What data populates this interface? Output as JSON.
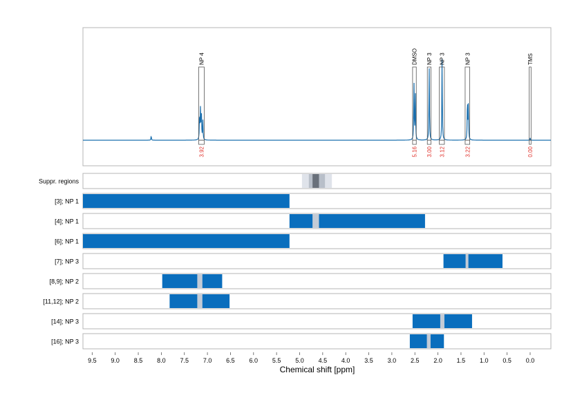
{
  "chart_data": {
    "type": "nmr_spectrum_with_region_panels",
    "xlabel": "Chemical shift [ppm]",
    "xlim": [
      9.7,
      -0.45
    ],
    "x_reversed": true,
    "x_ticks": [
      9.5,
      9.0,
      8.5,
      8.0,
      7.5,
      7.0,
      6.5,
      6.0,
      5.5,
      5.0,
      4.5,
      4.0,
      3.5,
      3.0,
      2.5,
      2.0,
      1.5,
      1.0,
      0.5,
      0.0
    ],
    "x_tick_labels": [
      "9.5",
      "9.0",
      "8.5",
      "8.0",
      "7.5",
      "7.0",
      "6.5",
      "6.0",
      "5.5",
      "5.0",
      "4.5",
      "4.0",
      "3.5",
      "3.0",
      "2.5",
      "2.0",
      "1.5",
      "1.0",
      "0.5",
      "0.0"
    ],
    "grid": true,
    "spectrum": {
      "color": "#1a6fae",
      "peaks": [
        {
          "ppm": 8.22,
          "height": 0.04
        },
        {
          "ppm": 7.17,
          "height": 0.24
        },
        {
          "ppm": 7.15,
          "height": 0.28
        },
        {
          "ppm": 7.13,
          "height": 0.22
        },
        {
          "ppm": 7.1,
          "height": 0.18
        },
        {
          "ppm": 2.52,
          "height": 0.53
        },
        {
          "ppm": 2.49,
          "height": 0.43
        },
        {
          "ppm": 2.19,
          "height": 0.68
        },
        {
          "ppm": 1.91,
          "height": 0.77
        },
        {
          "ppm": 1.36,
          "height": 0.38
        },
        {
          "ppm": 1.34,
          "height": 0.32
        },
        {
          "ppm": 0.0,
          "height": 0.02
        }
      ]
    },
    "annotations": [
      {
        "label": "NP 4",
        "ppm_left": 7.19,
        "ppm_right": 7.07,
        "value": "3.92"
      },
      {
        "label": "DMSO",
        "ppm_left": 2.55,
        "ppm_right": 2.47,
        "value": "5.16"
      },
      {
        "label": "NP 3",
        "ppm_left": 2.23,
        "ppm_right": 2.15,
        "value": "3.00"
      },
      {
        "label": "NP 3",
        "ppm_left": 1.97,
        "ppm_right": 1.86,
        "value": "3.12"
      },
      {
        "label": "NP 3",
        "ppm_left": 1.41,
        "ppm_right": 1.31,
        "value": "3.22"
      },
      {
        "label": "TMS",
        "ppm_left": 0.02,
        "ppm_right": -0.02,
        "value": "0.00"
      }
    ],
    "region_rows": [
      {
        "label": "Suppr. regions",
        "type": "suppression",
        "bands": [
          {
            "from": 4.95,
            "to": 4.3,
            "shade": "#dfe3ea"
          },
          {
            "from": 4.8,
            "to": 4.45,
            "shade": "#b8bfc9"
          },
          {
            "from": 4.72,
            "to": 4.58,
            "shade": "#69707a"
          }
        ]
      },
      {
        "label": "[3]; NP 1",
        "segments": [
          [
            9.7,
            5.22
          ]
        ],
        "gaps": []
      },
      {
        "label": "[4]; NP 1",
        "segments": [
          [
            5.22,
            4.72
          ],
          [
            4.58,
            2.28
          ]
        ],
        "gaps": [
          [
            4.72,
            4.58
          ]
        ]
      },
      {
        "label": "[6]; NP 1",
        "segments": [
          [
            9.7,
            5.22
          ]
        ],
        "gaps": []
      },
      {
        "label": "[7]; NP 3",
        "segments": [
          [
            1.88,
            1.4
          ],
          [
            1.34,
            0.6
          ]
        ],
        "gaps": [
          [
            1.4,
            1.34
          ]
        ]
      },
      {
        "label": "[8,9]; NP 2",
        "segments": [
          [
            7.98,
            7.22
          ],
          [
            7.11,
            6.68
          ]
        ],
        "gaps": [
          [
            7.22,
            7.11
          ]
        ]
      },
      {
        "label": "[11,12]; NP 2",
        "segments": [
          [
            7.82,
            7.22
          ],
          [
            7.11,
            6.52
          ]
        ],
        "gaps": [
          [
            7.22,
            7.11
          ]
        ]
      },
      {
        "label": "[14]; NP 3",
        "segments": [
          [
            2.55,
            1.95
          ],
          [
            1.86,
            1.26
          ]
        ],
        "gaps": [
          [
            1.95,
            1.86
          ]
        ]
      },
      {
        "label": "[16]; NP 3",
        "segments": [
          [
            2.61,
            2.24
          ],
          [
            2.16,
            1.87
          ]
        ],
        "gaps": [
          [
            2.24,
            2.16
          ]
        ]
      }
    ],
    "region_color": "#0a6ebd",
    "gap_color": "#c3cbd6"
  }
}
